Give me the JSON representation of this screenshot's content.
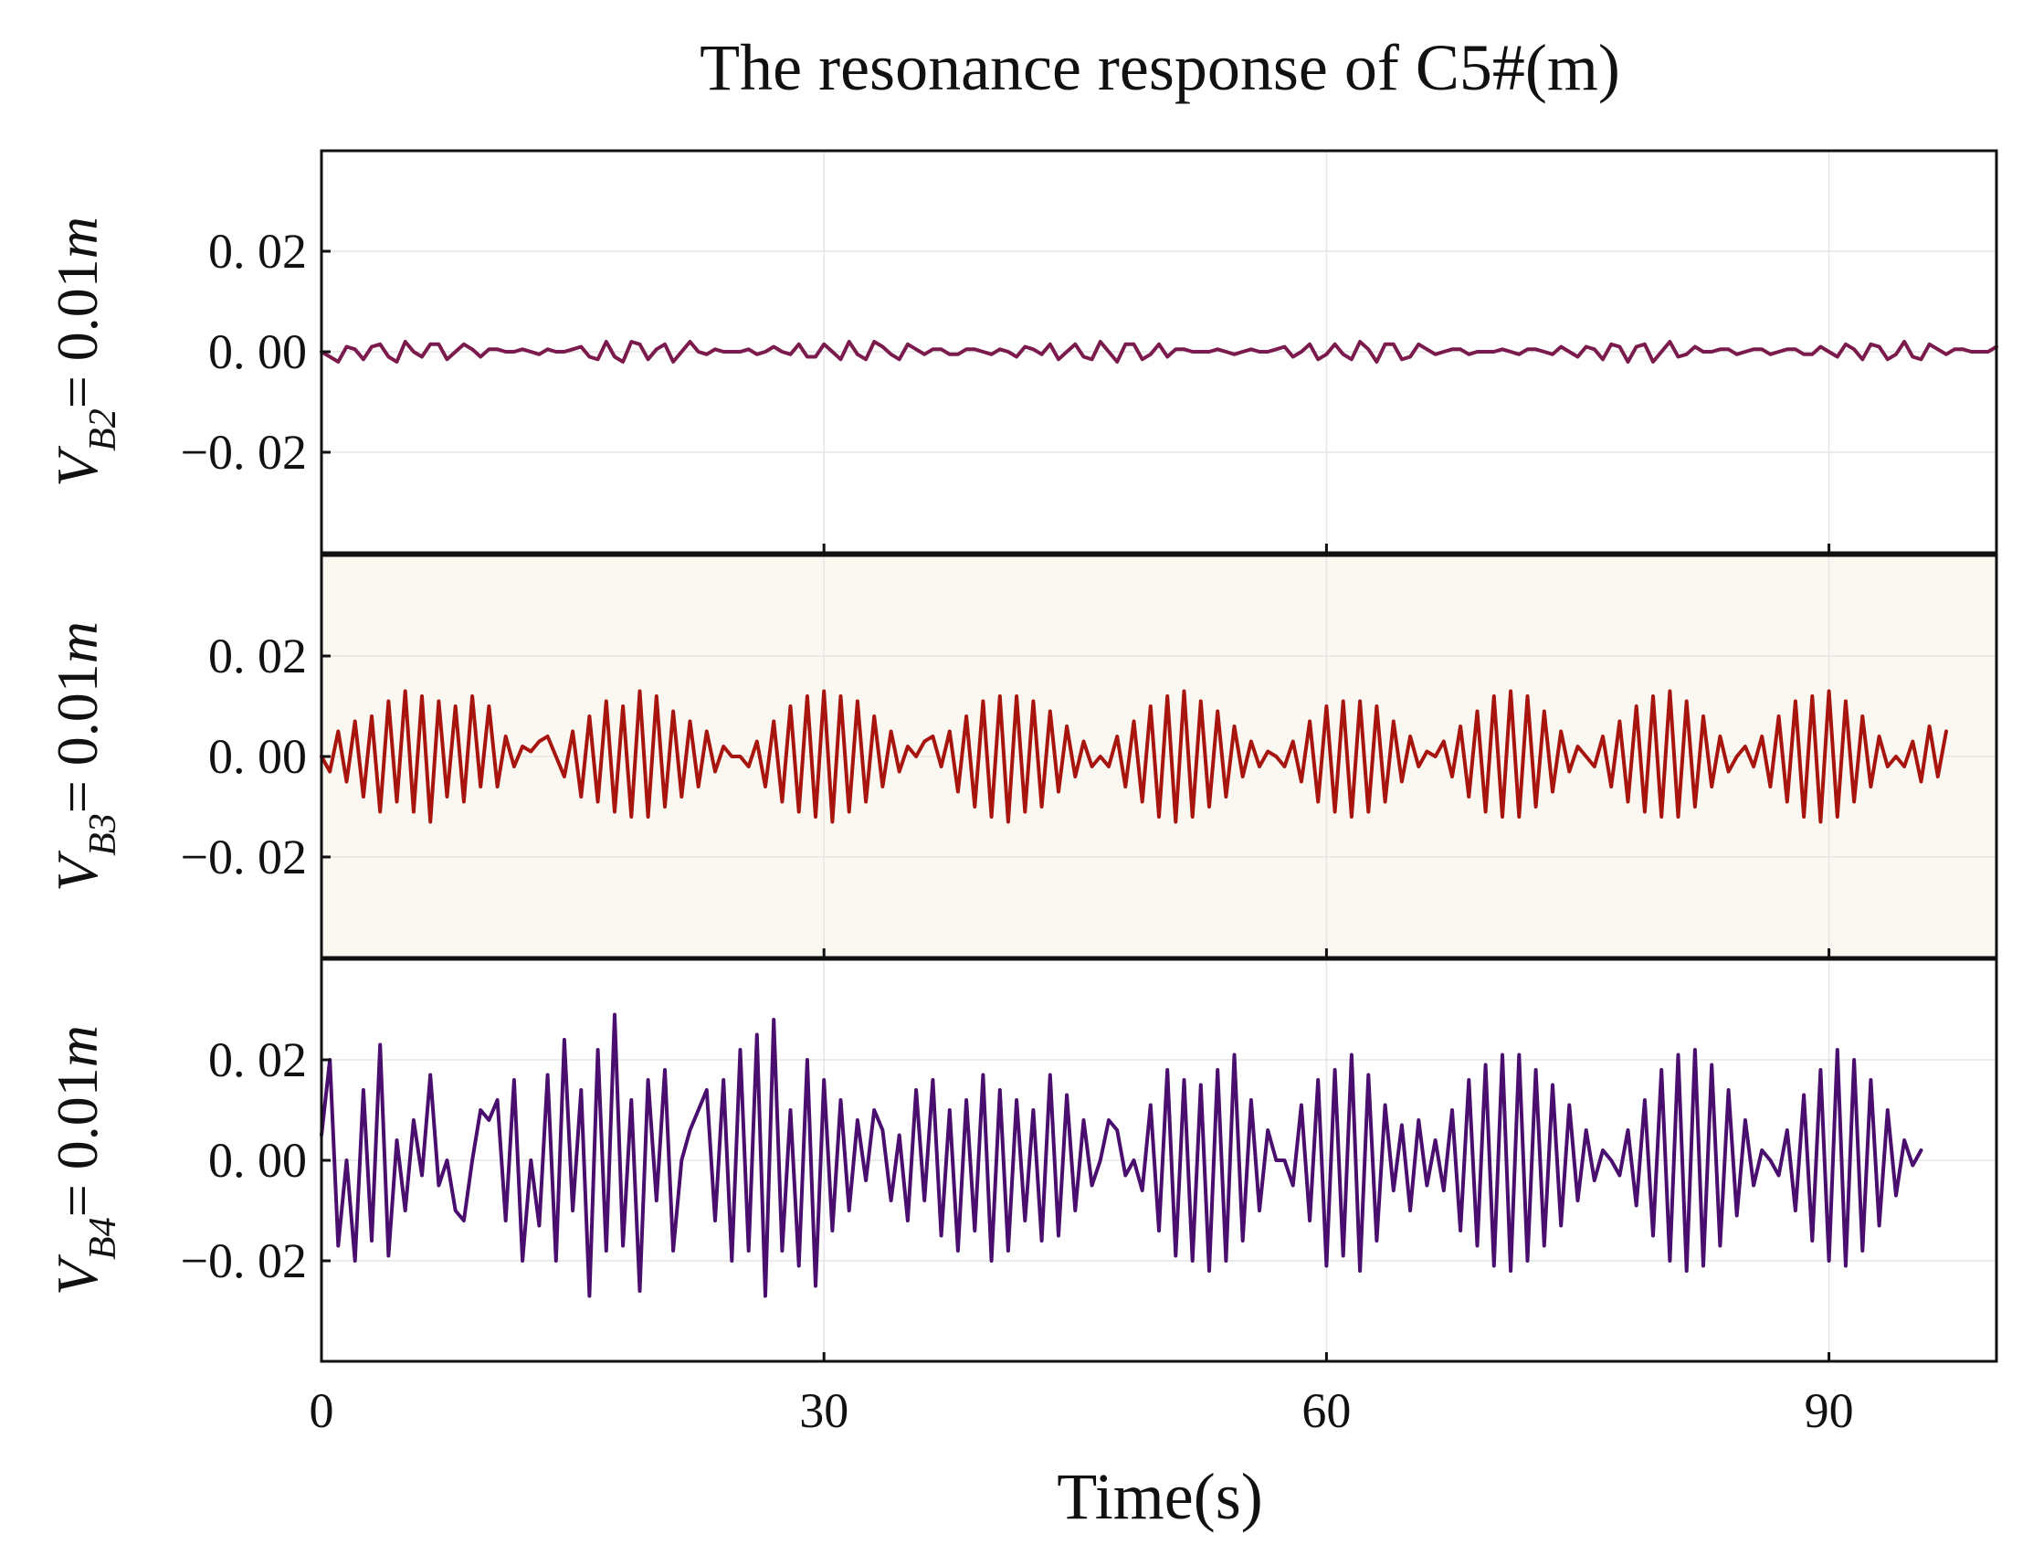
{
  "chart_data": {
    "type": "line",
    "title": "The resonance response of C5#(m)",
    "xlabel": "Time(s)",
    "xlim": [
      0,
      100
    ],
    "xticks": [
      0,
      30,
      60,
      90
    ],
    "xtick_labels": [
      "0",
      "30",
      "60",
      "90"
    ],
    "grid": true,
    "panels": [
      {
        "ylabel_prefix": "V",
        "ylabel_sub": "B2",
        "ylabel_suffix": "= 0.01",
        "ylabel_unit": "m",
        "ylim": [
          -0.04,
          0.04
        ],
        "yticks": [
          0.02,
          0.0,
          -0.02
        ],
        "ytick_labels": [
          "0. 02",
          "0. 00",
          "−0. 02"
        ],
        "background": "#ffffff",
        "color": "#7b1b4d",
        "series": {
          "name": "VB2 = 0.01m",
          "dt": 0.5,
          "values": [
            0.0,
            -0.001,
            -0.002,
            0.001,
            0.0005,
            -0.0015,
            0.001,
            0.0015,
            -0.001,
            -0.002,
            0.002,
            0.0,
            -0.001,
            0.0015,
            0.0015,
            -0.0015,
            0.0,
            0.0015,
            0.0005,
            -0.001,
            0.0005,
            0.0005,
            0.0,
            0.0,
            0.0005,
            0.0,
            -0.0005,
            0.0005,
            0.0,
            0.0,
            0.0005,
            0.001,
            -0.001,
            -0.0015,
            0.002,
            -0.001,
            -0.002,
            0.002,
            0.0015,
            -0.0015,
            0.0005,
            0.0015,
            -0.002,
            0.0,
            0.002,
            0.0,
            -0.0005,
            0.0005,
            0.0,
            0.0,
            0.0,
            0.0005,
            -0.0005,
            0.0,
            0.001,
            0.0,
            -0.0005,
            0.0015,
            -0.001,
            -0.001,
            0.0015,
            0.0,
            -0.0015,
            0.002,
            -0.0005,
            -0.0015,
            0.002,
            0.001,
            -0.0005,
            -0.0015,
            0.0015,
            0.0005,
            -0.0005,
            0.0005,
            0.0005,
            -0.0005,
            -0.0005,
            0.0005,
            0.0005,
            0.0,
            -0.0005,
            0.0005,
            0.0,
            -0.001,
            0.001,
            0.0005,
            -0.0005,
            0.0015,
            -0.0015,
            0.0,
            0.0015,
            -0.001,
            -0.0015,
            0.002,
            0.0,
            -0.002,
            0.0015,
            0.0015,
            -0.0015,
            -0.0005,
            0.0015,
            -0.001,
            0.0005,
            0.0005,
            0.0,
            0.0,
            0.0,
            0.0005,
            0.0,
            -0.0005,
            0.0,
            0.0005,
            0.0,
            0.0,
            0.0005,
            0.001,
            -0.001,
            0.0,
            0.0015,
            -0.0015,
            -0.0005,
            0.0015,
            -0.0005,
            -0.0015,
            0.002,
            0.0005,
            -0.002,
            0.0015,
            0.0015,
            -0.0015,
            -0.001,
            0.0015,
            0.0005,
            -0.0005,
            0.0,
            0.0005,
            0.0005,
            -0.0005,
            0.0,
            0.0,
            0.0,
            0.0005,
            0.0,
            -0.0005,
            0.0005,
            0.0005,
            0.0,
            -0.0005,
            0.001,
            0.0,
            -0.001,
            0.001,
            0.0005,
            -0.0015,
            0.0015,
            0.001,
            -0.002,
            0.001,
            0.0015,
            -0.002,
            0.0,
            0.002,
            -0.001,
            -0.0005,
            0.001,
            0.0,
            0.0,
            0.0005,
            0.0005,
            -0.0005,
            0.0,
            0.0005,
            0.0005,
            -0.0005,
            0.0,
            0.0005,
            0.0005,
            -0.0005,
            -0.0005,
            0.001,
            0.0,
            -0.001,
            0.0015,
            0.0005,
            -0.0015,
            0.0015,
            0.001,
            -0.0015,
            -0.0005,
            0.002,
            -0.001,
            -0.0015,
            0.0015,
            0.0005,
            -0.0005,
            0.0005,
            0.0005,
            0.0,
            0.0,
            0.0,
            0.001
          ]
        }
      },
      {
        "ylabel_prefix": "V",
        "ylabel_sub": "B3",
        "ylabel_suffix": "= 0.01",
        "ylabel_unit": "m",
        "ylim": [
          -0.04,
          0.04
        ],
        "yticks": [
          0.02,
          0.0,
          -0.02
        ],
        "ytick_labels": [
          "0. 02",
          "0. 00",
          "−0. 02"
        ],
        "background": "#fbf8f2",
        "color": "#a8150f",
        "series": {
          "name": "VB3 = 0.01m",
          "dt": 0.5,
          "values": [
            0.0,
            -0.003,
            0.005,
            -0.005,
            0.007,
            -0.008,
            0.008,
            -0.011,
            0.011,
            -0.009,
            0.013,
            -0.011,
            0.012,
            -0.013,
            0.011,
            -0.008,
            0.01,
            -0.009,
            0.012,
            -0.006,
            0.01,
            -0.006,
            0.004,
            -0.002,
            0.002,
            0.001,
            0.003,
            0.004,
            0.0,
            -0.004,
            0.005,
            -0.008,
            0.008,
            -0.009,
            0.011,
            -0.011,
            0.01,
            -0.012,
            0.013,
            -0.012,
            0.012,
            -0.01,
            0.009,
            -0.008,
            0.007,
            -0.006,
            0.005,
            -0.003,
            0.002,
            0.0,
            0.0,
            -0.002,
            0.003,
            -0.006,
            0.007,
            -0.009,
            0.01,
            -0.011,
            0.012,
            -0.012,
            0.013,
            -0.013,
            0.012,
            -0.011,
            0.011,
            -0.009,
            0.008,
            -0.006,
            0.005,
            -0.003,
            0.002,
            0.0,
            0.003,
            0.004,
            -0.002,
            0.005,
            -0.007,
            0.008,
            -0.01,
            0.011,
            -0.012,
            0.012,
            -0.013,
            0.012,
            -0.011,
            0.011,
            -0.01,
            0.009,
            -0.007,
            0.006,
            -0.004,
            0.003,
            -0.002,
            0.0,
            -0.002,
            0.004,
            -0.006,
            0.007,
            -0.009,
            0.01,
            -0.012,
            0.012,
            -0.013,
            0.013,
            -0.012,
            0.011,
            -0.01,
            0.009,
            -0.008,
            0.006,
            -0.004,
            0.003,
            -0.002,
            0.001,
            0.0,
            -0.002,
            0.003,
            -0.005,
            0.007,
            -0.009,
            0.01,
            -0.011,
            0.011,
            -0.012,
            0.011,
            -0.011,
            0.01,
            -0.009,
            0.007,
            -0.005,
            0.004,
            -0.002,
            0.001,
            0.0,
            0.003,
            -0.004,
            0.006,
            -0.008,
            0.009,
            -0.011,
            0.012,
            -0.012,
            0.013,
            -0.012,
            0.012,
            -0.01,
            0.009,
            -0.007,
            0.005,
            -0.003,
            0.002,
            0.0,
            -0.002,
            0.004,
            -0.006,
            0.007,
            -0.009,
            0.01,
            -0.011,
            0.012,
            -0.012,
            0.013,
            -0.012,
            0.011,
            -0.01,
            0.008,
            -0.006,
            0.004,
            -0.003,
            0.0,
            0.002,
            -0.002,
            0.004,
            -0.006,
            0.008,
            -0.009,
            0.011,
            -0.012,
            0.012,
            -0.013,
            0.013,
            -0.012,
            0.011,
            -0.009,
            0.008,
            -0.006,
            0.004,
            -0.002,
            0.0,
            -0.002,
            0.003,
            -0.005,
            0.006,
            -0.004,
            0.005
          ]
        }
      },
      {
        "ylabel_prefix": "V",
        "ylabel_sub": "B4",
        "ylabel_suffix": "= 0.01",
        "ylabel_unit": "m",
        "ylim": [
          -0.04,
          0.04
        ],
        "yticks": [
          0.02,
          0.0,
          -0.02
        ],
        "ytick_labels": [
          "0. 02",
          "0. 00",
          "−0. 02"
        ],
        "background": "#ffffff",
        "color": "#4a0f6e",
        "series": {
          "name": "VB4 = 0.01m",
          "dt": 0.5,
          "values": [
            0.005,
            0.02,
            -0.017,
            0.0,
            -0.02,
            0.014,
            -0.016,
            0.023,
            -0.019,
            0.004,
            -0.01,
            0.008,
            -0.003,
            0.017,
            -0.005,
            0.0,
            -0.01,
            -0.012,
            0.0,
            0.01,
            0.008,
            0.012,
            -0.012,
            0.016,
            -0.02,
            0.0,
            -0.013,
            0.017,
            -0.02,
            0.024,
            -0.01,
            0.014,
            -0.027,
            0.022,
            -0.018,
            0.029,
            -0.017,
            0.012,
            -0.026,
            0.016,
            -0.008,
            0.018,
            -0.018,
            0.0,
            0.006,
            0.01,
            0.014,
            -0.012,
            0.016,
            -0.02,
            0.022,
            -0.018,
            0.025,
            -0.027,
            0.028,
            -0.018,
            0.01,
            -0.021,
            0.02,
            -0.025,
            0.016,
            -0.014,
            0.012,
            -0.01,
            0.008,
            -0.004,
            0.01,
            0.006,
            -0.008,
            0.005,
            -0.012,
            0.014,
            -0.008,
            0.016,
            -0.015,
            0.01,
            -0.018,
            0.012,
            -0.014,
            0.017,
            -0.02,
            0.014,
            -0.018,
            0.012,
            -0.012,
            0.01,
            -0.016,
            0.017,
            -0.015,
            0.013,
            -0.01,
            0.008,
            -0.005,
            0.0,
            0.008,
            0.006,
            -0.003,
            0.0,
            -0.006,
            0.011,
            -0.014,
            0.018,
            -0.019,
            0.016,
            -0.02,
            0.015,
            -0.022,
            0.018,
            -0.02,
            0.021,
            -0.016,
            0.012,
            -0.01,
            0.006,
            0.0,
            0.0,
            -0.005,
            0.011,
            -0.012,
            0.016,
            -0.021,
            0.018,
            -0.019,
            0.021,
            -0.022,
            0.017,
            -0.016,
            0.011,
            -0.006,
            0.007,
            -0.01,
            0.008,
            -0.005,
            0.004,
            -0.006,
            0.01,
            -0.014,
            0.016,
            -0.017,
            0.019,
            -0.021,
            0.021,
            -0.022,
            0.021,
            -0.02,
            0.018,
            -0.017,
            0.015,
            -0.013,
            0.011,
            -0.008,
            0.006,
            -0.004,
            0.002,
            0.0,
            -0.003,
            0.006,
            -0.009,
            0.012,
            -0.015,
            0.018,
            -0.02,
            0.021,
            -0.022,
            0.022,
            -0.021,
            0.019,
            -0.017,
            0.014,
            -0.011,
            0.008,
            -0.005,
            0.002,
            0.0,
            -0.003,
            0.006,
            -0.01,
            0.013,
            -0.016,
            0.018,
            -0.02,
            0.022,
            -0.021,
            0.02,
            -0.018,
            0.016,
            -0.013,
            0.01,
            -0.007,
            0.004,
            -0.001,
            0.002
          ]
        }
      }
    ]
  }
}
